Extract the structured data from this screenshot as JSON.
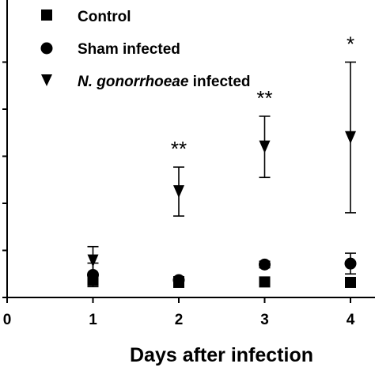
{
  "chart_data": {
    "type": "scatter",
    "title": "",
    "xlabel": "Days after infection",
    "ylabel": "",
    "x_ticks": [
      "0",
      "1",
      "2",
      "3",
      "4"
    ],
    "xlim": [
      0,
      4.3
    ],
    "ylim": [
      0,
      5
    ],
    "grid": false,
    "legend_position": "top",
    "legend": [
      {
        "name": "Control",
        "marker": "square"
      },
      {
        "name_italic": "N. gonorrhoeae",
        "name": "Sham infected",
        "marker": "circle"
      },
      {
        "name": "infected",
        "marker": "triangle-down"
      }
    ],
    "legend_labels": {
      "control": "Control",
      "sham": "Sham infected",
      "ng_italic": "N. gonorrhoeae",
      "ng_rest": " infected"
    },
    "series": [
      {
        "name": "Control",
        "marker": "square",
        "x": [
          1,
          2,
          3,
          4
        ],
        "y": [
          0.38,
          0.32,
          0.33,
          0.32
        ],
        "err": [
          0.12,
          0.06,
          0.05,
          0.06
        ]
      },
      {
        "name": "Sham infected",
        "marker": "circle",
        "x": [
          1,
          2,
          3,
          4
        ],
        "y": [
          0.48,
          0.37,
          0.7,
          0.72
        ],
        "err": [
          0.25,
          0.07,
          0.07,
          0.22
        ]
      },
      {
        "name": "N. gonorrhoeae infected",
        "marker": "triangle-down",
        "x": [
          1,
          2,
          3,
          4
        ],
        "y": [
          0.78,
          2.25,
          3.2,
          3.4
        ],
        "err": [
          0.3,
          0.52,
          0.65,
          1.6
        ]
      }
    ],
    "annotations": [
      {
        "x": 2,
        "text": "**"
      },
      {
        "x": 3,
        "text": "**"
      },
      {
        "x": 4,
        "text": "*"
      }
    ]
  }
}
